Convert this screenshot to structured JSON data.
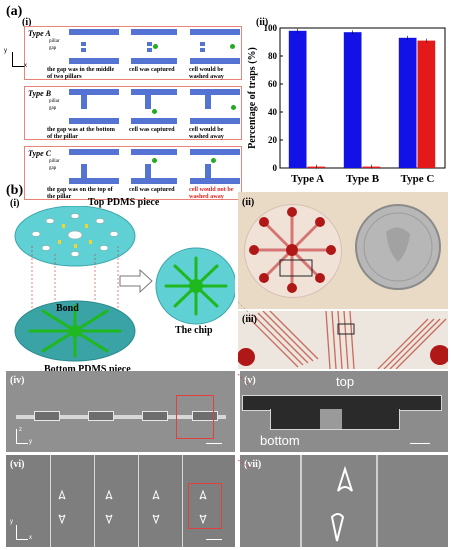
{
  "figure": {
    "panel_a": "(a)",
    "panel_b": "(b)",
    "sub": {
      "i": "(i)",
      "ii": "(ii)",
      "iii": "(iii)",
      "iv": "(iv)",
      "v": "(v)",
      "vi": "(vi)",
      "vii": "(vii)"
    },
    "trap_types": [
      {
        "name": "Type A",
        "pillar": "pillar",
        "gap": "gap",
        "captions": [
          "the gap was in the middle of two pillars",
          "cell was captured",
          "cell would be washed away"
        ],
        "last_red": false
      },
      {
        "name": "Type B",
        "pillar": "pillar",
        "gap": "gap",
        "captions": [
          "the gap was at the bottom of the pillar",
          "cell was captured",
          "cell would be washed away"
        ],
        "last_red": false
      },
      {
        "name": "Type C",
        "pillar": "pillar",
        "gap": "gap",
        "captions": [
          "the gap was on the top of the pillar",
          "cell was captured",
          "cell would not be washed away"
        ],
        "last_red": true
      }
    ],
    "axis_letters": {
      "x": "x",
      "y": "y",
      "z": "z"
    },
    "pdms": {
      "top": "Top PDMS piece",
      "bond": "Bond",
      "bottom": "Bottom PDMS piece",
      "chip": "The chip"
    },
    "sem_labels": {
      "top": "top",
      "bottom": "bottom"
    }
  },
  "colors": {
    "blue": "#1212e6",
    "red": "#e31a1a",
    "channel": "#5573d3",
    "border": "#e8847a",
    "cyan": "#5fd0d3",
    "green": "#22aa22"
  },
  "chart_data": {
    "type": "bar",
    "categories": [
      "Type A",
      "Type B",
      "Type C"
    ],
    "series": [
      {
        "color": "#1212e6",
        "values": [
          98,
          97,
          93
        ]
      },
      {
        "color": "#e31a1a",
        "values": [
          1,
          1,
          91
        ]
      }
    ],
    "ylabel": "Percentage of traps (%)",
    "ylim": [
      0,
      100
    ],
    "yticks": [
      "0",
      "20",
      "40",
      "60",
      "80",
      "100"
    ]
  }
}
